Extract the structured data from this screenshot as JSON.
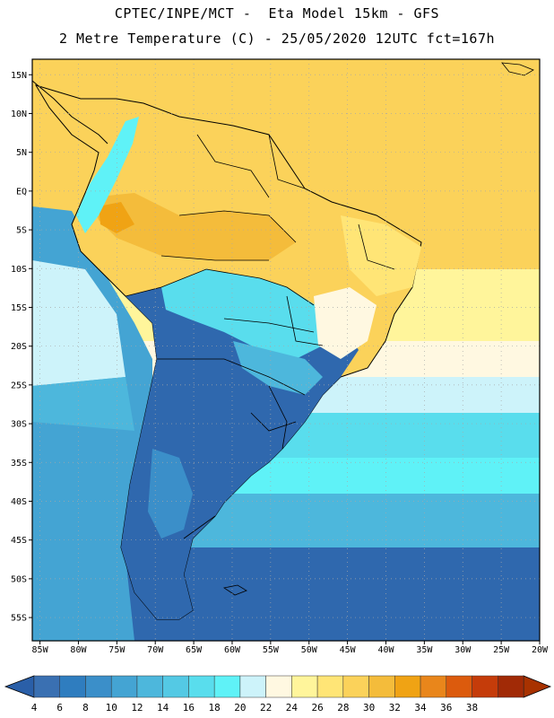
{
  "title": {
    "line1": "CPTEC/INPE/MCT -  Eta Model 15km - GFS",
    "line2": "2 Metre Temperature (C) - 25/05/2020 12UTC fct=167h"
  },
  "map": {
    "region": "South America",
    "lon_range": [
      -86,
      -20
    ],
    "lat_range": [
      -58,
      17
    ],
    "lat_labels": [
      "15N",
      "10N",
      "5N",
      "EQ",
      "5S",
      "10S",
      "15S",
      "20S",
      "25S",
      "30S",
      "35S",
      "40S",
      "45S",
      "50S",
      "55S"
    ],
    "lat_values": [
      15,
      10,
      5,
      0,
      -5,
      -10,
      -15,
      -20,
      -25,
      -30,
      -35,
      -40,
      -45,
      -50,
      -55
    ],
    "lon_labels": [
      "85W",
      "80W",
      "75W",
      "70W",
      "65W",
      "60W",
      "55W",
      "50W",
      "45W",
      "40W",
      "35W",
      "30W",
      "25W",
      "20W"
    ],
    "lon_values": [
      -85,
      -80,
      -75,
      -70,
      -65,
      -60,
      -55,
      -50,
      -45,
      -40,
      -35,
      -30,
      -25,
      -20
    ]
  },
  "colorbar": {
    "labels": [
      "4",
      "6",
      "8",
      "10",
      "12",
      "14",
      "16",
      "18",
      "20",
      "22",
      "24",
      "26",
      "28",
      "30",
      "32",
      "34",
      "36",
      "38"
    ],
    "colors": [
      "#3a70b2",
      "#2f7dbf",
      "#3b8fc9",
      "#44a4d3",
      "#4db7dc",
      "#54c9e4",
      "#59dded",
      "#5ff2f7",
      "#cdf3fa",
      "#fff8e1",
      "#fff59b",
      "#ffe576",
      "#fbd25a",
      "#f4bc3b",
      "#f0a314",
      "#e9861b",
      "#dc5b0d",
      "#c53c0a",
      "#a12a06"
    ],
    "low_color": "#2a5fa8",
    "high_color": "#a83200"
  }
}
